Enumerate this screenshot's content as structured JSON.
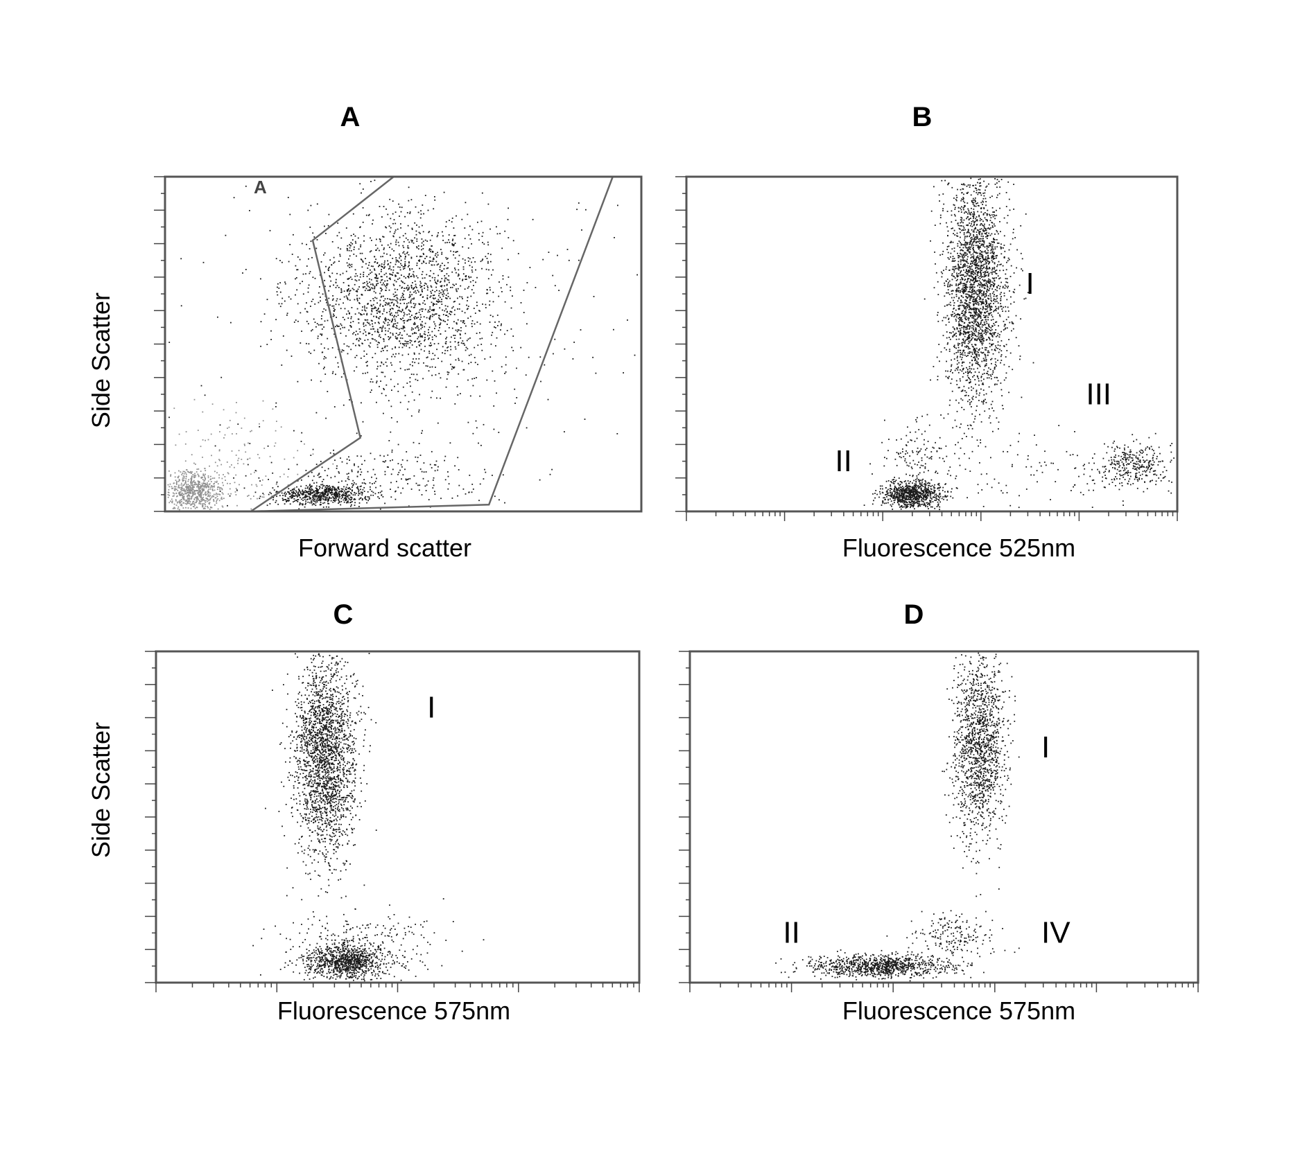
{
  "figure": {
    "background": "#ffffff"
  },
  "chart_data": [
    {
      "id": "A",
      "type": "scatter",
      "panel_label": "A",
      "title": "",
      "xlabel": "Forward scatter",
      "ylabel": "Side Scatter",
      "x_scale": "linear",
      "y_scale": "linear",
      "xlim": [
        0,
        100
      ],
      "ylim": [
        0,
        100
      ],
      "y_ticks": 11,
      "x_ticks": 0,
      "grid": false,
      "gates": [
        {
          "label": "A",
          "label_at": [
            20,
            95
          ],
          "polygon": [
            [
              18,
              0
            ],
            [
              41,
              22
            ],
            [
              31,
              81
            ],
            [
              48,
              100
            ],
            [
              94,
              100
            ],
            [
              68,
              2
            ]
          ]
        }
      ],
      "series": [
        {
          "color": "#909090",
          "clusters": [
            {
              "cx": 6,
              "cy": 6,
              "sx": 3,
              "sy": 3,
              "n": 650
            },
            {
              "cx": 14,
              "cy": 13,
              "sx": 8,
              "sy": 9,
              "n": 180
            }
          ]
        },
        {
          "color": "#1a1a1a",
          "clusters": [
            {
              "cx": 50,
              "cy": 63,
              "sx": 11,
              "sy": 13,
              "n": 1900
            },
            {
              "cx": 33,
              "cy": 5,
              "sx": 5,
              "sy": 1.5,
              "n": 620
            },
            {
              "cx": 45,
              "cy": 10,
              "sx": 13,
              "sy": 5,
              "n": 260
            },
            {
              "cx": 55,
              "cy": 50,
              "sx": 40,
              "sy": 40,
              "n": 220
            }
          ]
        }
      ],
      "annotations": []
    },
    {
      "id": "B",
      "type": "scatter",
      "panel_label": "B",
      "title": "",
      "xlabel": "Fluorescence 525nm",
      "ylabel": "",
      "x_scale": "log",
      "y_scale": "linear",
      "x_decades": 5,
      "xlim": [
        0,
        100
      ],
      "ylim": [
        0,
        100
      ],
      "y_ticks": 11,
      "grid": false,
      "gates": [],
      "series": [
        {
          "color": "#1a1a1a",
          "clusters": [
            {
              "cx": 59,
              "cy": 66,
              "sx": 3.2,
              "sy": 17,
              "n": 2400
            },
            {
              "cx": 46,
              "cy": 5,
              "sx": 3,
              "sy": 2,
              "n": 800
            },
            {
              "cx": 91,
              "cy": 14,
              "sx": 4,
              "sy": 3,
              "n": 300
            },
            {
              "cx": 75,
              "cy": 11,
              "sx": 14,
              "sy": 5,
              "n": 120
            },
            {
              "cx": 48,
              "cy": 17,
              "sx": 5,
              "sy": 5,
              "n": 120
            }
          ]
        }
      ],
      "annotations": [
        {
          "text": "I",
          "x": 70,
          "y": 65
        },
        {
          "text": "II",
          "x": 32,
          "y": 12
        },
        {
          "text": "III",
          "x": 84,
          "y": 32
        }
      ]
    },
    {
      "id": "C",
      "type": "scatter",
      "panel_label": "C",
      "title": "",
      "xlabel": "Fluorescence 575nm",
      "ylabel": "Side Scatter",
      "x_scale": "log",
      "y_scale": "linear",
      "x_decades": 4,
      "xlim": [
        0,
        100
      ],
      "ylim": [
        0,
        100
      ],
      "y_ticks": 11,
      "grid": false,
      "gates": [],
      "series": [
        {
          "color": "#1a1a1a",
          "clusters": [
            {
              "cx": 35,
              "cy": 68,
              "sx": 3.2,
              "sy": 15,
              "n": 2200
            },
            {
              "cx": 39,
              "cy": 6,
              "sx": 4,
              "sy": 2.5,
              "n": 900
            },
            {
              "cx": 42,
              "cy": 11,
              "sx": 8,
              "sy": 5,
              "n": 300
            }
          ]
        }
      ],
      "annotations": [
        {
          "text": "I",
          "x": 57,
          "y": 80
        }
      ]
    },
    {
      "id": "D",
      "type": "scatter",
      "panel_label": "D",
      "title": "",
      "xlabel": "Fluorescence 575nm",
      "ylabel": "",
      "x_scale": "log",
      "y_scale": "linear",
      "x_decades": 5,
      "xlim": [
        0,
        100
      ],
      "ylim": [
        0,
        100
      ],
      "y_ticks": 11,
      "grid": false,
      "gates": [],
      "series": [
        {
          "color": "#1a1a1a",
          "clusters": [
            {
              "cx": 57,
              "cy": 72,
              "sx": 2.5,
              "sy": 14,
              "n": 1400
            },
            {
              "cx": 38,
              "cy": 5,
              "sx": 7,
              "sy": 1.6,
              "n": 950
            },
            {
              "cx": 52,
              "cy": 14,
              "sx": 4,
              "sy": 3.5,
              "n": 180
            }
          ]
        }
      ],
      "annotations": [
        {
          "text": "I",
          "x": 70,
          "y": 68
        },
        {
          "text": "II",
          "x": 20,
          "y": 12
        },
        {
          "text": "IV",
          "x": 72,
          "y": 12
        }
      ]
    }
  ]
}
